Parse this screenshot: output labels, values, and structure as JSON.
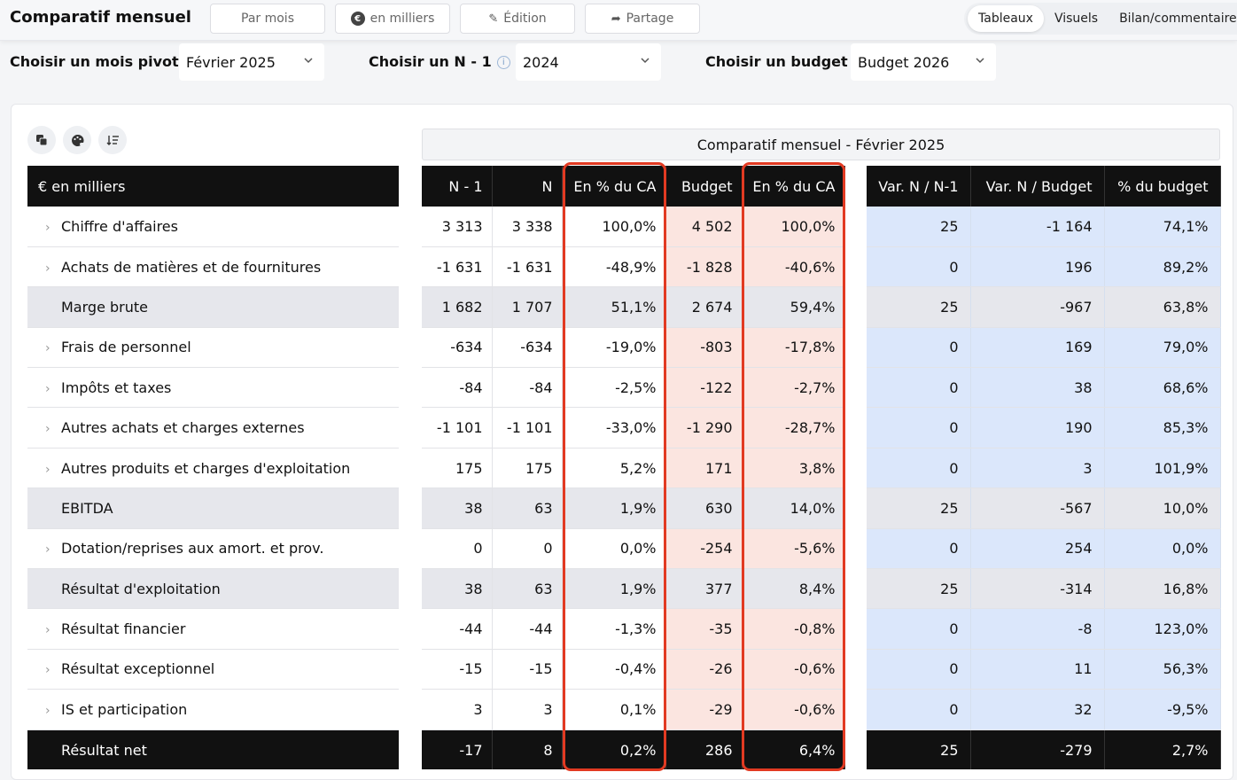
{
  "app": {
    "title": "Comparatif mensuel",
    "toolbar": {
      "par_mois": "Par mois",
      "en_milliers": "en milliers",
      "edition": "Édition",
      "partage": "Partage"
    },
    "views": [
      "Tableaux",
      "Visuels",
      "Bilan/commentaires"
    ],
    "active_view": "Tableaux"
  },
  "filters": {
    "mois_pivot": {
      "label": "Choisir un mois pivot",
      "value": "Février 2025"
    },
    "n_moins_un": {
      "label": "Choisir un N - 1",
      "value": "2024"
    },
    "budget": {
      "label": "Choisir un budget",
      "value": "Budget 2026"
    }
  },
  "table": {
    "caption": "Comparatif mensuel - Février 2025",
    "label_header": "€ en milliers",
    "headers": [
      "N - 1",
      "N",
      "En % du CA",
      "Budget",
      "En % du CA",
      "Var. N / N-1",
      "Var. N / Budget",
      "% du budget"
    ],
    "rows": [
      {
        "label": "Chiffre d'affaires",
        "n1": "3 313",
        "n": "3 338",
        "pct_ca_n": "100,0%",
        "budget": "4 502",
        "pct_ca_budget": "100,0%",
        "var_n_n1": "25",
        "var_n_budget": "-1 164",
        "pct_budget": "74,1%"
      },
      {
        "label": "Achats de matières et de fournitures",
        "n1": "-1 631",
        "n": "-1 631",
        "pct_ca_n": "-48,9%",
        "budget": "-1 828",
        "pct_ca_budget": "-40,6%",
        "var_n_n1": "0",
        "var_n_budget": "196",
        "pct_budget": "89,2%"
      },
      {
        "label": "Marge brute",
        "n1": "1 682",
        "n": "1 707",
        "pct_ca_n": "51,1%",
        "budget": "2 674",
        "pct_ca_budget": "59,4%",
        "var_n_n1": "25",
        "var_n_budget": "-967",
        "pct_budget": "63,8%"
      },
      {
        "label": "Frais de personnel",
        "n1": "-634",
        "n": "-634",
        "pct_ca_n": "-19,0%",
        "budget": "-803",
        "pct_ca_budget": "-17,8%",
        "var_n_n1": "0",
        "var_n_budget": "169",
        "pct_budget": "79,0%"
      },
      {
        "label": "Impôts et taxes",
        "n1": "-84",
        "n": "-84",
        "pct_ca_n": "-2,5%",
        "budget": "-122",
        "pct_ca_budget": "-2,7%",
        "var_n_n1": "0",
        "var_n_budget": "38",
        "pct_budget": "68,6%"
      },
      {
        "label": "Autres achats et charges externes",
        "n1": "-1 101",
        "n": "-1 101",
        "pct_ca_n": "-33,0%",
        "budget": "-1 290",
        "pct_ca_budget": "-28,7%",
        "var_n_n1": "0",
        "var_n_budget": "190",
        "pct_budget": "85,3%"
      },
      {
        "label": "Autres produits et charges d'exploitation",
        "n1": "175",
        "n": "175",
        "pct_ca_n": "5,2%",
        "budget": "171",
        "pct_ca_budget": "3,8%",
        "var_n_n1": "0",
        "var_n_budget": "3",
        "pct_budget": "101,9%"
      },
      {
        "label": "EBITDA",
        "n1": "38",
        "n": "63",
        "pct_ca_n": "1,9%",
        "budget": "630",
        "pct_ca_budget": "14,0%",
        "var_n_n1": "25",
        "var_n_budget": "-567",
        "pct_budget": "10,0%"
      },
      {
        "label": "Dotation/reprises aux amort. et prov.",
        "n1": "0",
        "n": "0",
        "pct_ca_n": "0,0%",
        "budget": "-254",
        "pct_ca_budget": "-5,6%",
        "var_n_n1": "0",
        "var_n_budget": "254",
        "pct_budget": "0,0%"
      },
      {
        "label": "Résultat d'exploitation",
        "n1": "38",
        "n": "63",
        "pct_ca_n": "1,9%",
        "budget": "377",
        "pct_ca_budget": "8,4%",
        "var_n_n1": "25",
        "var_n_budget": "-314",
        "pct_budget": "16,8%"
      },
      {
        "label": "Résultat financier",
        "n1": "-44",
        "n": "-44",
        "pct_ca_n": "-1,3%",
        "budget": "-35",
        "pct_ca_budget": "-0,8%",
        "var_n_n1": "0",
        "var_n_budget": "-8",
        "pct_budget": "123,0%"
      },
      {
        "label": "Résultat exceptionnel",
        "n1": "-15",
        "n": "-15",
        "pct_ca_n": "-0,4%",
        "budget": "-26",
        "pct_ca_budget": "-0,6%",
        "var_n_n1": "0",
        "var_n_budget": "11",
        "pct_budget": "56,3%"
      },
      {
        "label": "IS et participation",
        "n1": "3",
        "n": "3",
        "pct_ca_n": "0,1%",
        "budget": "-29",
        "pct_ca_budget": "-0,6%",
        "var_n_n1": "0",
        "var_n_budget": "32",
        "pct_budget": "-9,5%"
      },
      {
        "label": "Résultat net",
        "n1": "-17",
        "n": "8",
        "pct_ca_n": "0,2%",
        "budget": "286",
        "pct_ca_budget": "6,4%",
        "var_n_n1": "25",
        "var_n_budget": "-279",
        "pct_budget": "2,7%"
      }
    ]
  },
  "colors": {
    "header_bg": "#111111",
    "budget_col_bg": "#fbe5e0",
    "variance_bg": "#dbe7fb",
    "subtotal_bg": "#e6e7ec",
    "highlight_border": "#e23a22"
  }
}
